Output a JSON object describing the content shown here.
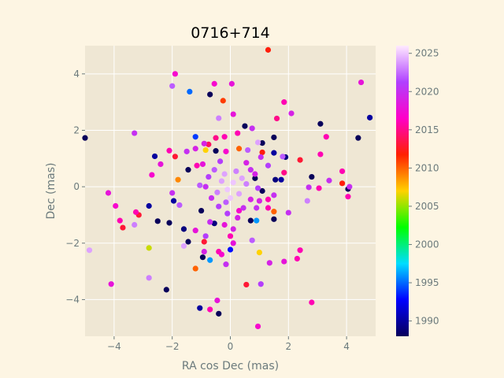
{
  "chart_data": {
    "type": "scatter",
    "title": "0716+714",
    "xlabel": "RA cos Dec (mas)",
    "ylabel": "Dec (mas)",
    "xlim": [
      -5,
      5
    ],
    "ylim": [
      -5.3,
      5
    ],
    "xticks": [
      -4,
      -2,
      0,
      2,
      4
    ],
    "yticks": [
      -4,
      -2,
      0,
      2,
      4
    ],
    "grid": true,
    "colorbar": {
      "label": "",
      "range": [
        1988,
        2026
      ],
      "ticks": [
        1990,
        1995,
        2000,
        2005,
        2010,
        2015,
        2020,
        2025
      ],
      "colors": [
        "#08005a",
        "#0000ff",
        "#00ddff",
        "#00ff00",
        "#ffd200",
        "#ff2000",
        "#ff00c8",
        "#b040ff",
        "#ffeaff"
      ]
    },
    "points": [
      {
        "x": -1.9,
        "y": 4.0,
        "year": 2017
      },
      {
        "x": -2.0,
        "y": 3.57,
        "year": 2022
      },
      {
        "x": -1.4,
        "y": 3.37,
        "year": 1995
      },
      {
        "x": -0.55,
        "y": 3.65,
        "year": 2017
      },
      {
        "x": 0.05,
        "y": 3.65,
        "year": 2018
      },
      {
        "x": -0.7,
        "y": 3.27,
        "year": 1988
      },
      {
        "x": -0.25,
        "y": 3.05,
        "year": 2011
      },
      {
        "x": 1.3,
        "y": 4.85,
        "year": 2012
      },
      {
        "x": 4.5,
        "y": 3.7,
        "year": 2018
      },
      {
        "x": 1.85,
        "y": 3.0,
        "year": 2016
      },
      {
        "x": 2.1,
        "y": 2.6,
        "year": 2019
      },
      {
        "x": 0.1,
        "y": 2.57,
        "year": 2018
      },
      {
        "x": -0.4,
        "y": 2.43,
        "year": 2023
      },
      {
        "x": 1.6,
        "y": 2.42,
        "year": 2015
      },
      {
        "x": 3.1,
        "y": 2.23,
        "year": 1988
      },
      {
        "x": 4.8,
        "y": 2.45,
        "year": 1990
      },
      {
        "x": 0.25,
        "y": 1.9,
        "year": 2016
      },
      {
        "x": 0.5,
        "y": 2.15,
        "year": 1988
      },
      {
        "x": 0.75,
        "y": 2.07,
        "year": 2020
      },
      {
        "x": -3.3,
        "y": 1.9,
        "year": 2020
      },
      {
        "x": -1.2,
        "y": 1.77,
        "year": 1994
      },
      {
        "x": -0.5,
        "y": 1.73,
        "year": 2015
      },
      {
        "x": -0.2,
        "y": 1.77,
        "year": 2016
      },
      {
        "x": 1.5,
        "y": 1.75,
        "year": 1988
      },
      {
        "x": 3.3,
        "y": 1.77,
        "year": 2016
      },
      {
        "x": 4.4,
        "y": 1.73,
        "year": 1987
      },
      {
        "x": -5.0,
        "y": 1.73,
        "year": 1986
      },
      {
        "x": -0.9,
        "y": 1.53,
        "year": 2019
      },
      {
        "x": 0.95,
        "y": 1.57,
        "year": 2024
      },
      {
        "x": 1.1,
        "y": 1.55,
        "year": 1987
      },
      {
        "x": -0.75,
        "y": 1.5,
        "year": 2014
      },
      {
        "x": 0.3,
        "y": 1.35,
        "year": 2010
      },
      {
        "x": -2.1,
        "y": 1.28,
        "year": 2016
      },
      {
        "x": -1.2,
        "y": 1.35,
        "year": 2019
      },
      {
        "x": -0.85,
        "y": 1.3,
        "year": 2007
      },
      {
        "x": -0.5,
        "y": 1.27,
        "year": 1988
      },
      {
        "x": -0.15,
        "y": 1.25,
        "year": 2017
      },
      {
        "x": 0.6,
        "y": 1.3,
        "year": 2022
      },
      {
        "x": 1.1,
        "y": 1.22,
        "year": 2012
      },
      {
        "x": 1.5,
        "y": 1.2,
        "year": 1990
      },
      {
        "x": 1.8,
        "y": 1.07,
        "year": 2022
      },
      {
        "x": 3.1,
        "y": 1.15,
        "year": 2016
      },
      {
        "x": -2.6,
        "y": 1.08,
        "year": 1990
      },
      {
        "x": -1.9,
        "y": 1.07,
        "year": 2013
      },
      {
        "x": -1.5,
        "y": 1.25,
        "year": 2020
      },
      {
        "x": 1.05,
        "y": 1.05,
        "year": 2020
      },
      {
        "x": 1.9,
        "y": 1.05,
        "year": 1989
      },
      {
        "x": 2.4,
        "y": 0.95,
        "year": 2013
      },
      {
        "x": -2.4,
        "y": 0.8,
        "year": 2018
      },
      {
        "x": -1.15,
        "y": 0.75,
        "year": 2016
      },
      {
        "x": -0.95,
        "y": 0.8,
        "year": 2018
      },
      {
        "x": -1.45,
        "y": 0.6,
        "year": 1987
      },
      {
        "x": 1.3,
        "y": 0.75,
        "year": 2021
      },
      {
        "x": 1.85,
        "y": 0.5,
        "year": 2015
      },
      {
        "x": 3.85,
        "y": 0.55,
        "year": 2016
      },
      {
        "x": -2.7,
        "y": 0.42,
        "year": 2017
      },
      {
        "x": -1.8,
        "y": 0.25,
        "year": 2009
      },
      {
        "x": 2.8,
        "y": 0.35,
        "year": 1987
      },
      {
        "x": 3.4,
        "y": 0.22,
        "year": 2020
      },
      {
        "x": 1.75,
        "y": 0.25,
        "year": 1990
      },
      {
        "x": 1.55,
        "y": 0.25,
        "year": 1989
      },
      {
        "x": 3.85,
        "y": 0.12,
        "year": 2012
      },
      {
        "x": 0.85,
        "y": 0.3,
        "year": 1988
      },
      {
        "x": -1.05,
        "y": 0.05,
        "year": 2022
      },
      {
        "x": 2.7,
        "y": -0.02,
        "year": 2020
      },
      {
        "x": 3.05,
        "y": -0.05,
        "year": 2016
      },
      {
        "x": 4.1,
        "y": 0.0,
        "year": 2020
      },
      {
        "x": 4.05,
        "y": -0.08,
        "year": 1987
      },
      {
        "x": -4.2,
        "y": -0.22,
        "year": 2018
      },
      {
        "x": -2.0,
        "y": -0.22,
        "year": 2020
      },
      {
        "x": 1.1,
        "y": -0.15,
        "year": 1988
      },
      {
        "x": 1.5,
        "y": -0.3,
        "year": 2020
      },
      {
        "x": 4.05,
        "y": -0.35,
        "year": 2016
      },
      {
        "x": -1.95,
        "y": -0.5,
        "year": 1990
      },
      {
        "x": 1.0,
        "y": -0.5,
        "year": 2019
      },
      {
        "x": 1.3,
        "y": -0.45,
        "year": 2016
      },
      {
        "x": 2.65,
        "y": -0.5,
        "year": 2023
      },
      {
        "x": -3.95,
        "y": -0.68,
        "year": 2017
      },
      {
        "x": -2.8,
        "y": -0.68,
        "year": 1990
      },
      {
        "x": -1.75,
        "y": -0.65,
        "year": 2022
      },
      {
        "x": -1.0,
        "y": -0.85,
        "year": 1988
      },
      {
        "x": 0.9,
        "y": -0.75,
        "year": 2020
      },
      {
        "x": 1.3,
        "y": -0.75,
        "year": 2016
      },
      {
        "x": 1.5,
        "y": -0.88,
        "year": 2010
      },
      {
        "x": 2.0,
        "y": -0.92,
        "year": 2020
      },
      {
        "x": -3.25,
        "y": -0.9,
        "year": 2016
      },
      {
        "x": -3.15,
        "y": -1.0,
        "year": 2013
      },
      {
        "x": -0.1,
        "y": -0.95,
        "year": 2021
      },
      {
        "x": 0.3,
        "y": -0.85,
        "year": 2017
      },
      {
        "x": -3.8,
        "y": -1.2,
        "year": 2016
      },
      {
        "x": -3.3,
        "y": -1.35,
        "year": 2023
      },
      {
        "x": -2.5,
        "y": -1.22,
        "year": 1988
      },
      {
        "x": -2.1,
        "y": -1.28,
        "year": 1988
      },
      {
        "x": -0.7,
        "y": -1.25,
        "year": 2020
      },
      {
        "x": -0.55,
        "y": -1.3,
        "year": 1989
      },
      {
        "x": 0.25,
        "y": -1.1,
        "year": 2019
      },
      {
        "x": 0.7,
        "y": -1.2,
        "year": 1987
      },
      {
        "x": 0.9,
        "y": -1.2,
        "year": 1996
      },
      {
        "x": 1.5,
        "y": -1.15,
        "year": 1987
      },
      {
        "x": -3.7,
        "y": -1.45,
        "year": 2013
      },
      {
        "x": -1.6,
        "y": -1.5,
        "year": 1989
      },
      {
        "x": -1.2,
        "y": -1.55,
        "year": 2018
      },
      {
        "x": 0.1,
        "y": -1.5,
        "year": 2019
      },
      {
        "x": -0.2,
        "y": -1.35,
        "year": 2018
      },
      {
        "x": -0.85,
        "y": -1.75,
        "year": 2021
      },
      {
        "x": 0.0,
        "y": -1.75,
        "year": 2016
      },
      {
        "x": -1.45,
        "y": -1.95,
        "year": 1988
      },
      {
        "x": -0.9,
        "y": -1.95,
        "year": 2013
      },
      {
        "x": 0.1,
        "y": -2.0,
        "year": 2018
      },
      {
        "x": 0.75,
        "y": -1.9,
        "year": 2022
      },
      {
        "x": -2.8,
        "y": -2.17,
        "year": 2006
      },
      {
        "x": -1.6,
        "y": -2.1,
        "year": 2024
      },
      {
        "x": -0.9,
        "y": -2.3,
        "year": 2019
      },
      {
        "x": 0.0,
        "y": -2.23,
        "year": 1993
      },
      {
        "x": 1.0,
        "y": -2.33,
        "year": 2007
      },
      {
        "x": 2.4,
        "y": -2.25,
        "year": 2016
      },
      {
        "x": -4.85,
        "y": -2.25,
        "year": 2024
      },
      {
        "x": -0.4,
        "y": -2.3,
        "year": 2016
      },
      {
        "x": -0.3,
        "y": -2.4,
        "year": 2017
      },
      {
        "x": -0.95,
        "y": -2.5,
        "year": 1988
      },
      {
        "x": -0.7,
        "y": -2.6,
        "year": 1996
      },
      {
        "x": 2.3,
        "y": -2.55,
        "year": 2016
      },
      {
        "x": 1.35,
        "y": -2.7,
        "year": 2019
      },
      {
        "x": 1.85,
        "y": -2.65,
        "year": 2018
      },
      {
        "x": -1.2,
        "y": -2.9,
        "year": 2010
      },
      {
        "x": -0.15,
        "y": -2.75,
        "year": 2020
      },
      {
        "x": -2.8,
        "y": -3.23,
        "year": 2023
      },
      {
        "x": -4.1,
        "y": -3.45,
        "year": 2018
      },
      {
        "x": 0.55,
        "y": -3.47,
        "year": 2013
      },
      {
        "x": 1.05,
        "y": -3.45,
        "year": 2021
      },
      {
        "x": -2.2,
        "y": -3.65,
        "year": 1987
      },
      {
        "x": -0.45,
        "y": -4.03,
        "year": 2018
      },
      {
        "x": 2.8,
        "y": -4.1,
        "year": 2016
      },
      {
        "x": -1.05,
        "y": -4.3,
        "year": 1990
      },
      {
        "x": -0.7,
        "y": -4.35,
        "year": 2016
      },
      {
        "x": -0.4,
        "y": -4.5,
        "year": 1987
      },
      {
        "x": 0.95,
        "y": -4.95,
        "year": 2017
      },
      {
        "x": -0.35,
        "y": 0.9,
        "year": 2021
      },
      {
        "x": 0.55,
        "y": 0.85,
        "year": 2019
      },
      {
        "x": -0.55,
        "y": 0.6,
        "year": 2022
      },
      {
        "x": 0.7,
        "y": 0.6,
        "year": 2020
      },
      {
        "x": -0.75,
        "y": 0.35,
        "year": 2021
      },
      {
        "x": 0.85,
        "y": 0.45,
        "year": 2019
      },
      {
        "x": -0.85,
        "y": 0.0,
        "year": 2020
      },
      {
        "x": 0.95,
        "y": -0.05,
        "year": 2021
      },
      {
        "x": -0.65,
        "y": -0.4,
        "year": 2020
      },
      {
        "x": 0.7,
        "y": -0.45,
        "year": 2019
      },
      {
        "x": -0.4,
        "y": -0.7,
        "year": 2021
      },
      {
        "x": 0.45,
        "y": -0.75,
        "year": 2020
      },
      {
        "x": -0.15,
        "y": -0.55,
        "year": 2022
      },
      {
        "x": 0.2,
        "y": 0.55,
        "year": 2023
      },
      {
        "x": -0.3,
        "y": 0.2,
        "year": 2024
      },
      {
        "x": 0.3,
        "y": -0.25,
        "year": 2024
      },
      {
        "x": 0.1,
        "y": 0.15,
        "year": 2025
      },
      {
        "x": -0.1,
        "y": -0.1,
        "year": 2025
      },
      {
        "x": 0.4,
        "y": 0.3,
        "year": 2024
      },
      {
        "x": -0.45,
        "y": -0.2,
        "year": 2023
      },
      {
        "x": 0.55,
        "y": 0.1,
        "year": 2023
      },
      {
        "x": -0.2,
        "y": 0.45,
        "year": 2024
      },
      {
        "x": 0.0,
        "y": -0.4,
        "year": 2025
      }
    ]
  }
}
